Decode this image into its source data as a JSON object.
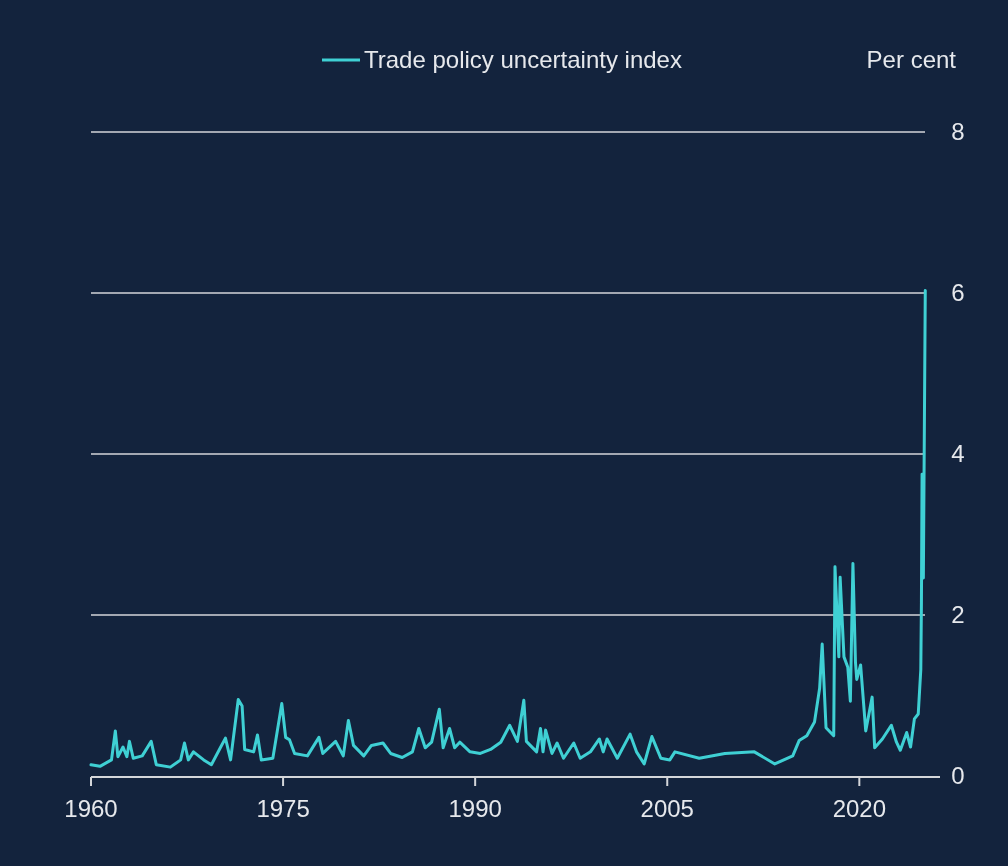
{
  "chart_data": {
    "type": "line",
    "ylabel": "Per cent",
    "xlim": [
      1960,
      2026.3
    ],
    "xticks": [
      1960,
      1975,
      1990,
      2005,
      2020
    ],
    "ylim": [
      0,
      8
    ],
    "yticks": [
      0,
      2,
      4,
      6,
      8
    ],
    "grid": "y",
    "legend": "top",
    "line_style": "solid",
    "marker": "none",
    "series": [
      {
        "name": "Trade policy uncertainty index",
        "color": "#3fd0d4",
        "x": [
          1960.0,
          1960.7,
          1961.6,
          1961.9,
          1962.1,
          1962.5,
          1962.8,
          1963.0,
          1963.3,
          1964.0,
          1964.7,
          1965.1,
          1966.2,
          1967.0,
          1967.3,
          1967.6,
          1968.0,
          1968.8,
          1969.4,
          1970.1,
          1970.5,
          1970.9,
          1971.5,
          1971.8,
          1972.0,
          1972.7,
          1973.0,
          1973.3,
          1974.2,
          1974.9,
          1975.2,
          1975.5,
          1975.9,
          1976.9,
          1977.8,
          1978.1,
          1979.1,
          1979.7,
          1980.1,
          1980.5,
          1981.3,
          1981.9,
          1982.8,
          1983.4,
          1984.3,
          1985.1,
          1985.6,
          1986.1,
          1986.6,
          1987.2,
          1987.5,
          1988.0,
          1988.4,
          1988.8,
          1989.6,
          1990.4,
          1991.2,
          1992.0,
          1992.7,
          1993.3,
          1993.8,
          1994.0,
          1994.8,
          1995.1,
          1995.3,
          1995.5,
          1996.0,
          1996.4,
          1996.9,
          1997.7,
          1998.2,
          1999.0,
          1999.7,
          2000.0,
          2000.3,
          2001.1,
          2002.1,
          2002.6,
          2003.2,
          2003.8,
          2004.5,
          2005.2,
          2005.6,
          2007.5,
          2009.5,
          2011.8,
          2013.4,
          2014.8,
          2015.3,
          2015.9,
          2016.5,
          2016.9,
          2017.1,
          2017.4,
          2018.0,
          2018.1,
          2018.4,
          2018.5,
          2018.8,
          2019.1,
          2019.3,
          2019.5,
          2019.7,
          2019.8,
          2020.1,
          2020.5,
          2021.0,
          2021.2,
          2021.8,
          2022.5,
          2022.9,
          2023.2,
          2023.7,
          2024.0,
          2024.3,
          2024.6,
          2024.8,
          2024.85,
          2024.9,
          2025.0,
          2025.15
        ],
        "values": [
          0.14,
          0.12,
          0.2,
          0.56,
          0.24,
          0.36,
          0.24,
          0.43,
          0.22,
          0.25,
          0.43,
          0.14,
          0.11,
          0.2,
          0.41,
          0.2,
          0.3,
          0.2,
          0.14,
          0.35,
          0.47,
          0.2,
          0.95,
          0.87,
          0.33,
          0.3,
          0.51,
          0.2,
          0.22,
          0.9,
          0.48,
          0.45,
          0.28,
          0.25,
          0.48,
          0.28,
          0.43,
          0.25,
          0.69,
          0.38,
          0.25,
          0.38,
          0.41,
          0.28,
          0.23,
          0.3,
          0.59,
          0.35,
          0.42,
          0.83,
          0.35,
          0.59,
          0.35,
          0.42,
          0.3,
          0.28,
          0.33,
          0.42,
          0.63,
          0.43,
          0.94,
          0.43,
          0.3,
          0.59,
          0.3,
          0.57,
          0.28,
          0.41,
          0.22,
          0.41,
          0.22,
          0.3,
          0.46,
          0.3,
          0.46,
          0.22,
          0.52,
          0.3,
          0.15,
          0.49,
          0.22,
          0.2,
          0.3,
          0.22,
          0.28,
          0.3,
          0.15,
          0.25,
          0.44,
          0.5,
          0.67,
          1.09,
          1.64,
          0.6,
          0.5,
          2.6,
          1.48,
          2.47,
          1.48,
          1.35,
          0.93,
          2.64,
          1.41,
          1.2,
          1.38,
          0.56,
          0.98,
          0.35,
          0.46,
          0.63,
          0.42,
          0.32,
          0.54,
          0.36,
          0.71,
          0.77,
          1.32,
          2.16,
          3.75,
          2.46,
          6.03
        ]
      }
    ]
  }
}
